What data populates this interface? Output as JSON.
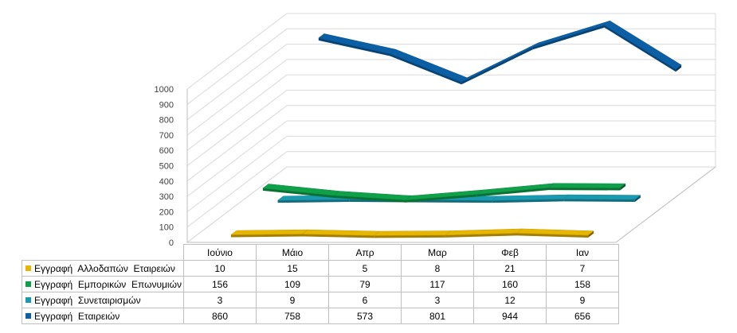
{
  "chart_data": {
    "type": "line",
    "categories": [
      "Ιούνιο",
      "Μάιο",
      "Απρ",
      "Μαρ",
      "Φεβ",
      "Ιαν"
    ],
    "series": [
      {
        "name": "Εγγραφή  Αλλοδαπών  Εταιρειών",
        "values": [
          10,
          15,
          5,
          8,
          21,
          7
        ],
        "color": "#e7b600"
      },
      {
        "name": "Εγγραφή  Εμπορικών  Επωνυμιών",
        "values": [
          156,
          109,
          79,
          117,
          160,
          158
        ],
        "color": "#0fa04a"
      },
      {
        "name": "Εγγραφή  Συνεταιρισμών",
        "values": [
          3,
          9,
          6,
          3,
          12,
          9
        ],
        "color": "#1a9ab0"
      },
      {
        "name": "Εγγραφή  Εταιρειών",
        "values": [
          860,
          758,
          573,
          801,
          944,
          656
        ],
        "color": "#0b5fa5"
      }
    ],
    "ylim": [
      0,
      1000
    ],
    "yticks": [
      "0",
      "100",
      "200",
      "300",
      "400",
      "500",
      "600",
      "700",
      "800",
      "900",
      "1000"
    ],
    "grid": true,
    "legend": "table-below"
  }
}
